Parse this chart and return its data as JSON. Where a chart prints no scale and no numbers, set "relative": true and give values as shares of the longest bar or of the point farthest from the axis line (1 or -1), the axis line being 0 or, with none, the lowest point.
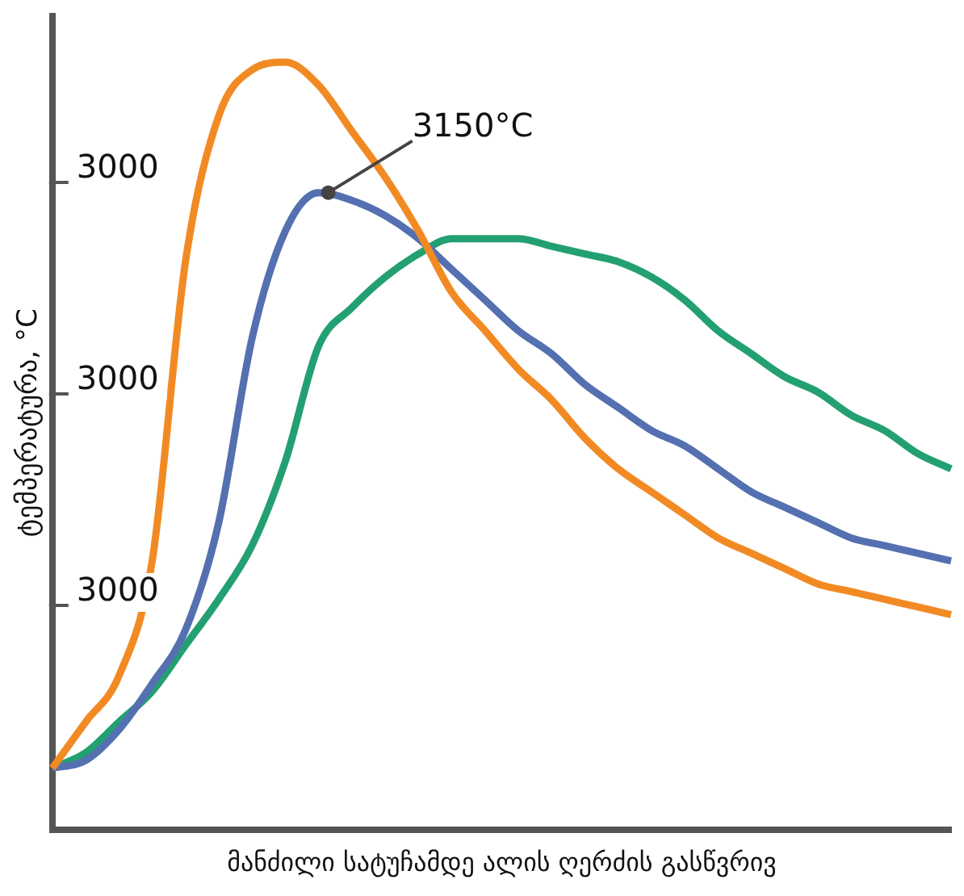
{
  "chart_data": {
    "type": "line",
    "relative": true,
    "xlabel": "მანძილი სატუჩამდე ალის ღერძის გასწვრივ",
    "ylabel": "ტემპერატურა, °C",
    "categories": [
      null,
      null,
      null,
      null,
      null,
      null,
      null,
      null,
      null,
      null,
      null,
      null,
      null,
      null,
      null,
      null,
      null,
      null,
      null,
      null,
      null,
      null,
      null,
      null,
      null,
      null,
      null,
      null
    ],
    "series": [
      {
        "color": "#f28a24",
        "values": [
          0.08,
          0.14,
          0.2,
          0.35,
          0.74,
          0.93,
          0.99,
          1.0,
          0.97,
          0.91,
          0.85,
          0.78,
          0.7,
          0.65,
          0.6,
          0.56,
          0.51,
          0.47,
          0.44,
          0.41,
          0.38,
          0.36,
          0.34,
          0.32,
          0.31,
          0.3,
          0.29,
          0.28
        ]
      },
      {
        "color": "#5470b0",
        "values": [
          0.08,
          0.09,
          0.13,
          0.19,
          0.26,
          0.4,
          0.64,
          0.78,
          0.83,
          0.82,
          0.8,
          0.77,
          0.73,
          0.69,
          0.65,
          0.62,
          0.58,
          0.55,
          0.52,
          0.5,
          0.47,
          0.44,
          0.42,
          0.4,
          0.38,
          0.37,
          0.36,
          0.35
        ]
      },
      {
        "color": "#23a071",
        "values": [
          0.08,
          0.1,
          0.14,
          0.18,
          0.24,
          0.3,
          0.37,
          0.48,
          0.63,
          0.68,
          0.72,
          0.75,
          0.77,
          0.77,
          0.77,
          0.76,
          0.75,
          0.74,
          0.72,
          0.69,
          0.65,
          0.62,
          0.59,
          0.57,
          0.54,
          0.52,
          0.49,
          0.47
        ]
      }
    ],
    "annotations": [
      "3000",
      "3000",
      "3000",
      "3150°C"
    ]
  }
}
